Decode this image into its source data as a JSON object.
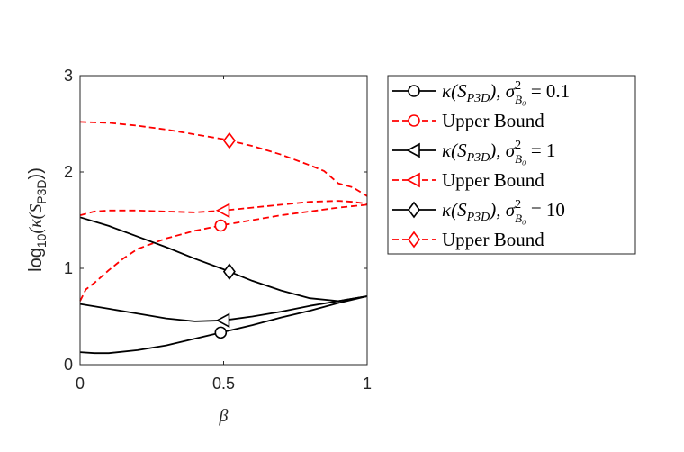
{
  "chart_data": {
    "type": "line",
    "xlabel": "β",
    "ylabel": {
      "prefix": "log",
      "sub": "10",
      "mid": "(κ(S",
      "sub2": "P3D",
      "suffix": "))"
    },
    "xlim": [
      0,
      1
    ],
    "ylim": [
      0,
      3
    ],
    "xticks": [
      "0",
      "0.5",
      "1"
    ],
    "yticks": [
      "0",
      "1",
      "2",
      "3"
    ],
    "grid": false,
    "legend_position": "outside-right",
    "colors": {
      "black": "#000000",
      "red": "#ff0000"
    },
    "series": [
      {
        "name": "κ(S_P3D), σ²_B₀ = 0.1",
        "legend": {
          "main": "κ(S",
          "sub": "P3D",
          "mid": "), σ",
          "sup": "2",
          "sub2": "B₀",
          "tail": " = 0.1"
        },
        "color": "#000000",
        "dash": "solid",
        "marker": "circle",
        "marker_x": 0.49,
        "x": [
          0,
          0.05,
          0.1,
          0.2,
          0.3,
          0.4,
          0.5,
          0.6,
          0.7,
          0.8,
          0.9,
          1.0
        ],
        "y": [
          0.13,
          0.12,
          0.12,
          0.15,
          0.2,
          0.27,
          0.34,
          0.41,
          0.49,
          0.56,
          0.64,
          0.71
        ]
      },
      {
        "name": "Upper Bound",
        "legend": {
          "main": "Upper Bound"
        },
        "color": "#ff0000",
        "dash": "dashed",
        "marker": "circle",
        "marker_x": 0.49,
        "x": [
          0,
          0.02,
          0.05,
          0.1,
          0.15,
          0.2,
          0.3,
          0.4,
          0.5,
          0.6,
          0.7,
          0.8,
          0.9,
          1.0
        ],
        "y": [
          0.66,
          0.78,
          0.85,
          0.98,
          1.1,
          1.2,
          1.31,
          1.39,
          1.45,
          1.5,
          1.55,
          1.59,
          1.63,
          1.66
        ]
      },
      {
        "name": "κ(S_P3D), σ²_B₀ = 1",
        "legend": {
          "main": "κ(S",
          "sub": "P3D",
          "mid": "), σ",
          "sup": "2",
          "sub2": "B₀",
          "tail": " = 1"
        },
        "color": "#000000",
        "dash": "solid",
        "marker": "triangle-left",
        "marker_x": 0.5,
        "x": [
          0,
          0.1,
          0.2,
          0.3,
          0.4,
          0.5,
          0.6,
          0.7,
          0.8,
          0.9,
          1.0
        ],
        "y": [
          0.63,
          0.58,
          0.53,
          0.48,
          0.45,
          0.46,
          0.5,
          0.55,
          0.61,
          0.66,
          0.71
        ]
      },
      {
        "name": "Upper Bound",
        "legend": {
          "main": "Upper Bound"
        },
        "color": "#ff0000",
        "dash": "dashed",
        "marker": "triangle-left",
        "marker_x": 0.5,
        "x": [
          0,
          0.05,
          0.1,
          0.2,
          0.3,
          0.4,
          0.5,
          0.6,
          0.7,
          0.8,
          0.9,
          0.95,
          1.0
        ],
        "y": [
          1.55,
          1.59,
          1.6,
          1.6,
          1.59,
          1.58,
          1.6,
          1.63,
          1.66,
          1.69,
          1.7,
          1.69,
          1.67
        ]
      },
      {
        "name": "κ(S_P3D), σ²_B₀ = 10",
        "legend": {
          "main": "κ(S",
          "sub": "P3D",
          "mid": "), σ",
          "sup": "2",
          "sub2": "B₀",
          "tail": " = 10"
        },
        "color": "#000000",
        "dash": "solid",
        "marker": "diamond",
        "marker_x": 0.52,
        "x": [
          0,
          0.1,
          0.2,
          0.3,
          0.4,
          0.5,
          0.6,
          0.7,
          0.8,
          0.9,
          1.0
        ],
        "y": [
          1.53,
          1.44,
          1.33,
          1.22,
          1.1,
          0.99,
          0.87,
          0.77,
          0.69,
          0.66,
          0.71
        ]
      },
      {
        "name": "Upper Bound",
        "legend": {
          "main": "Upper Bound"
        },
        "color": "#ff0000",
        "dash": "dashed",
        "marker": "diamond",
        "marker_x": 0.52,
        "x": [
          0,
          0.1,
          0.2,
          0.3,
          0.4,
          0.5,
          0.6,
          0.7,
          0.8,
          0.85,
          0.9,
          0.95,
          1.0
        ],
        "y": [
          2.52,
          2.51,
          2.48,
          2.44,
          2.39,
          2.34,
          2.27,
          2.18,
          2.07,
          2.01,
          1.88,
          1.84,
          1.75
        ]
      }
    ]
  }
}
